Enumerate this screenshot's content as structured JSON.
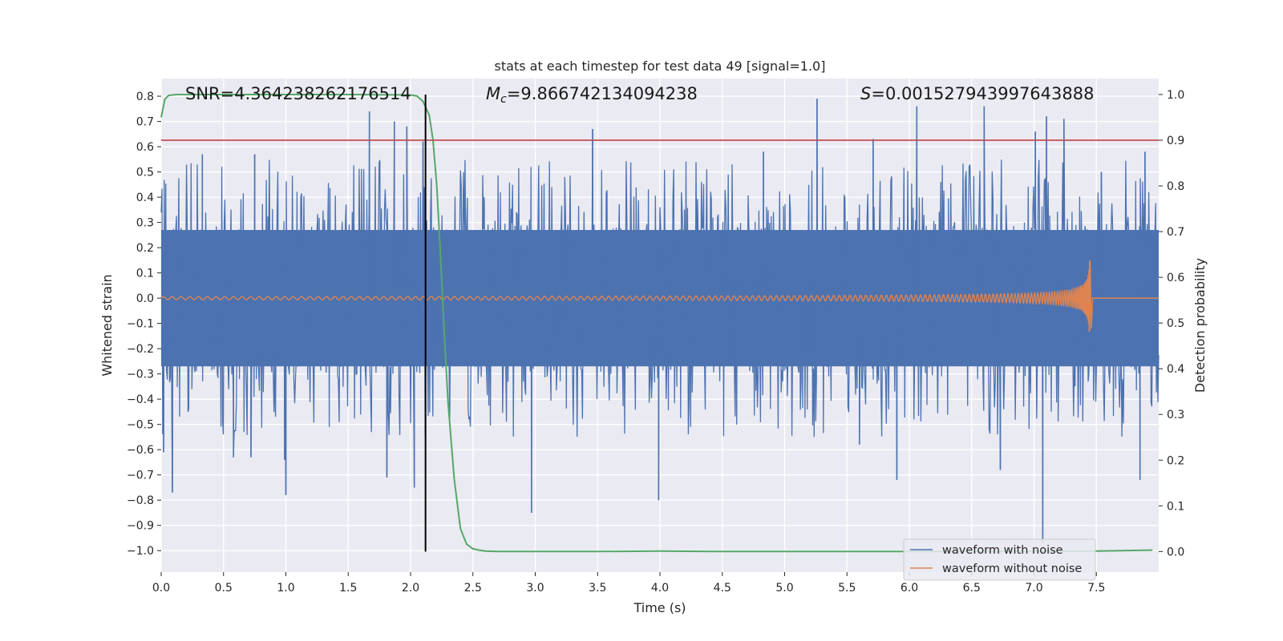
{
  "chart_data": {
    "type": "line",
    "title": "stats at each timestep for test data 49 [signal=1.0]",
    "xlabel": "Time (s)",
    "ylabel_left": "Whitened strain",
    "ylabel_right": "Detection probability",
    "xlim": [
      0.0,
      8.0
    ],
    "ylim_left": [
      -1.085,
      0.87
    ],
    "ylim_right": [
      -0.045,
      1.035
    ],
    "x_ticks": [
      "0.0",
      "0.5",
      "1.0",
      "1.5",
      "2.0",
      "2.5",
      "3.0",
      "3.5",
      "4.0",
      "4.5",
      "5.0",
      "5.5",
      "6.0",
      "6.5",
      "7.0",
      "7.5"
    ],
    "y_ticks_left": [
      "0.8",
      "0.7",
      "0.6",
      "0.5",
      "0.4",
      "0.3",
      "0.2",
      "0.1",
      "0.0",
      "−0.1",
      "−0.2",
      "−0.3",
      "−0.4",
      "−0.5",
      "−0.6",
      "−0.7",
      "−0.8",
      "−0.9",
      "−1.0"
    ],
    "y_ticks_right": [
      "1.0",
      "0.9",
      "0.8",
      "0.7",
      "0.6",
      "0.5",
      "0.4",
      "0.3",
      "0.2",
      "0.1",
      "0.0"
    ],
    "grid": true,
    "legend_position": "lower-right",
    "annotations": {
      "snr": "SNR=4.364238262176514",
      "mc_symbol": "M",
      "mc_sub": "c",
      "mc_value": "=9.866742134094238",
      "s_symbol": "S",
      "s_value": "=0.001527943997643888"
    },
    "threshold_line_right_y": 0.9,
    "marker_vertical_x": 2.12,
    "series": [
      {
        "name": "waveform with noise",
        "axis": "left",
        "kind": "noise",
        "color": "#4c72b0",
        "envelope": {
          "dense_range": [
            -0.27,
            0.27
          ],
          "typical_peak_range": [
            -0.5,
            0.55
          ]
        },
        "peaks": [
          {
            "x": 0.02,
            "y": -0.61
          },
          {
            "x": 0.09,
            "y": -0.77
          },
          {
            "x": 0.33,
            "y": 0.57
          },
          {
            "x": 0.58,
            "y": -0.63
          },
          {
            "x": 0.72,
            "y": -0.63
          },
          {
            "x": 0.75,
            "y": 0.57
          },
          {
            "x": 0.99,
            "y": -0.64
          },
          {
            "x": 1.0,
            "y": -0.78
          },
          {
            "x": 1.67,
            "y": 0.74
          },
          {
            "x": 1.81,
            "y": -0.71
          },
          {
            "x": 1.87,
            "y": 0.7
          },
          {
            "x": 1.97,
            "y": 0.68
          },
          {
            "x": 2.03,
            "y": -0.75
          },
          {
            "x": 2.1,
            "y": 0.62
          },
          {
            "x": 2.97,
            "y": -0.85
          },
          {
            "x": 3.46,
            "y": 0.67
          },
          {
            "x": 3.99,
            "y": -0.8
          },
          {
            "x": 4.83,
            "y": 0.58
          },
          {
            "x": 5.26,
            "y": 0.79
          },
          {
            "x": 5.6,
            "y": -0.58
          },
          {
            "x": 5.71,
            "y": 0.63
          },
          {
            "x": 5.9,
            "y": -0.72
          },
          {
            "x": 6.06,
            "y": 0.76
          },
          {
            "x": 6.6,
            "y": 0.76
          },
          {
            "x": 6.73,
            "y": -0.68
          },
          {
            "x": 7.01,
            "y": 0.66
          },
          {
            "x": 7.07,
            "y": -0.97
          },
          {
            "x": 7.1,
            "y": 0.72
          },
          {
            "x": 7.24,
            "y": 0.71
          },
          {
            "x": 7.54,
            "y": 0.5
          },
          {
            "x": 7.85,
            "y": -0.72
          },
          {
            "x": 7.89,
            "y": 0.58
          }
        ]
      },
      {
        "name": "waveform without noise",
        "axis": "left",
        "kind": "chirp",
        "color": "#dd8452",
        "chirp": {
          "start_amplitude": 0.006,
          "peak_amplitude": 0.15,
          "merger_time": 7.45,
          "end_time": 8.0
        }
      },
      {
        "name": "",
        "axis": "right",
        "kind": "line",
        "color": "#55a868",
        "x": [
          0.0,
          0.03,
          0.06,
          0.12,
          0.2,
          0.5,
          1.0,
          1.5,
          2.0,
          2.05,
          2.1,
          2.15,
          2.18,
          2.21,
          2.24,
          2.27,
          2.3,
          2.35,
          2.4,
          2.45,
          2.5,
          2.55,
          2.6,
          2.7,
          3.0,
          3.5,
          4.0,
          4.5,
          5.0,
          5.5,
          6.0,
          6.5,
          7.0,
          7.5,
          7.95
        ],
        "y": [
          0.95,
          0.99,
          0.998,
          1.0,
          1.0,
          1.0,
          1.0,
          1.0,
          0.999,
          0.997,
          0.985,
          0.955,
          0.9,
          0.8,
          0.65,
          0.48,
          0.33,
          0.16,
          0.05,
          0.016,
          0.006,
          0.003,
          0.001,
          0.0,
          0.0,
          0.0,
          0.001,
          0.0,
          0.0,
          0.0,
          0.0,
          0.0,
          0.0,
          0.001,
          0.003
        ]
      }
    ]
  }
}
